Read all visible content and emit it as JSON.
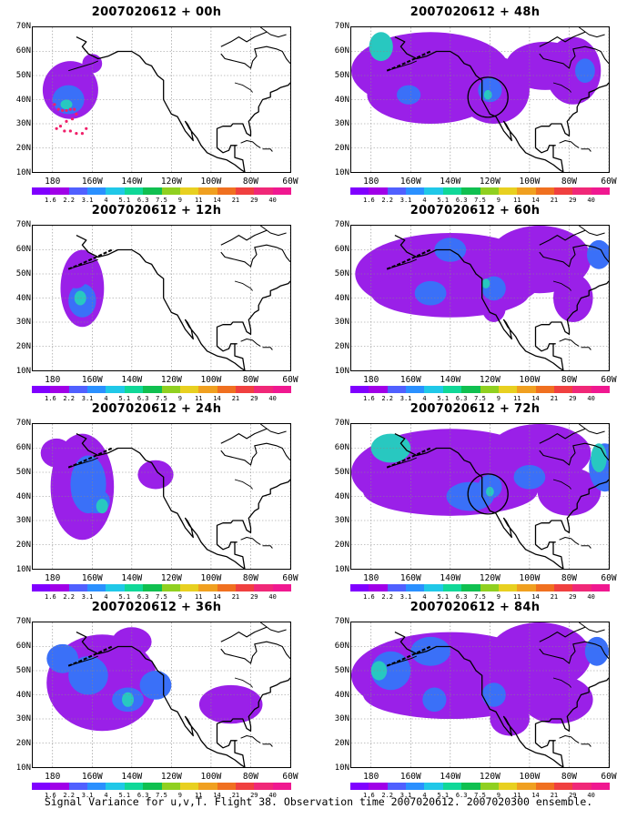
{
  "panels": [
    {
      "title": "2007020612 + 00h",
      "blobs": [
        [
          -171,
          44,
          14,
          12,
          0
        ],
        [
          -172,
          40,
          8,
          6,
          1
        ],
        [
          -173,
          38,
          3,
          2,
          2
        ],
        [
          -160,
          55,
          5,
          4,
          0
        ]
      ],
      "circle": false,
      "dots": true
    },
    {
      "title": "2007020612 + 48h",
      "blobs": [
        [
          -150,
          52,
          40,
          16,
          0
        ],
        [
          -150,
          42,
          32,
          12,
          0
        ],
        [
          -118,
          44,
          18,
          14,
          0
        ],
        [
          -92,
          54,
          20,
          10,
          0
        ],
        [
          -78,
          52,
          14,
          14,
          0
        ],
        [
          -120,
          44,
          6,
          5,
          1
        ],
        [
          -161,
          42,
          6,
          4,
          1
        ],
        [
          -72,
          52,
          5,
          5,
          1
        ],
        [
          -175,
          62,
          6,
          6,
          2
        ],
        [
          -121,
          42,
          2,
          2,
          2
        ]
      ],
      "circle": true,
      "dots": false
    },
    {
      "title": "2007020612 + 12h",
      "blobs": [
        [
          -165,
          44,
          11,
          16,
          0
        ],
        [
          -165,
          39,
          7,
          7,
          1
        ],
        [
          -166,
          40,
          3,
          3,
          2
        ],
        [
          -168,
          50,
          6,
          6,
          0
        ]
      ],
      "circle": false,
      "dots": false
    },
    {
      "title": "2007020612 + 60h",
      "blobs": [
        [
          -140,
          50,
          48,
          17,
          0
        ],
        [
          -140,
          42,
          40,
          10,
          0
        ],
        [
          -95,
          56,
          26,
          14,
          0
        ],
        [
          -118,
          36,
          6,
          6,
          0
        ],
        [
          -78,
          40,
          10,
          10,
          0
        ],
        [
          -150,
          42,
          8,
          5,
          1
        ],
        [
          -118,
          44,
          6,
          5,
          1
        ],
        [
          -140,
          60,
          8,
          5,
          1
        ],
        [
          -65,
          58,
          6,
          6,
          1
        ],
        [
          -122,
          46,
          2,
          2,
          2
        ]
      ],
      "circle": false,
      "dots": false
    },
    {
      "title": "2007020612 + 24h",
      "blobs": [
        [
          -165,
          44,
          16,
          22,
          0
        ],
        [
          -162,
          45,
          9,
          12,
          1
        ],
        [
          -158,
          38,
          7,
          5,
          1
        ],
        [
          -155,
          36,
          3,
          3,
          2
        ],
        [
          -178,
          58,
          8,
          6,
          0
        ],
        [
          -128,
          49,
          9,
          6,
          0
        ]
      ],
      "circle": false,
      "dots": false
    },
    {
      "title": "2007020612 + 72h",
      "blobs": [
        [
          -140,
          50,
          50,
          18,
          0
        ],
        [
          -140,
          42,
          44,
          10,
          0
        ],
        [
          -95,
          58,
          26,
          12,
          0
        ],
        [
          -80,
          42,
          16,
          10,
          0
        ],
        [
          -130,
          40,
          12,
          6,
          1
        ],
        [
          -62,
          52,
          8,
          10,
          1
        ],
        [
          -100,
          48,
          8,
          5,
          1
        ],
        [
          -120,
          44,
          6,
          5,
          1
        ],
        [
          -170,
          60,
          10,
          6,
          2
        ],
        [
          -65,
          56,
          4,
          6,
          2
        ],
        [
          -120,
          42,
          2,
          2,
          2
        ]
      ],
      "circle": true,
      "dots": false
    },
    {
      "title": "2007020612 + 36h",
      "blobs": [
        [
          -155,
          45,
          28,
          20,
          0
        ],
        [
          -162,
          48,
          10,
          8,
          1
        ],
        [
          -142,
          38,
          8,
          5,
          1
        ],
        [
          -128,
          44,
          8,
          6,
          1
        ],
        [
          -175,
          55,
          8,
          6,
          1
        ],
        [
          -142,
          38,
          3,
          3,
          2
        ],
        [
          -140,
          62,
          10,
          6,
          0
        ],
        [
          -90,
          36,
          16,
          8,
          0
        ]
      ],
      "circle": false,
      "dots": false
    },
    {
      "title": "2007020612 + 84h",
      "blobs": [
        [
          -140,
          48,
          50,
          18,
          0
        ],
        [
          -140,
          40,
          44,
          10,
          0
        ],
        [
          -95,
          56,
          26,
          14,
          0
        ],
        [
          -110,
          30,
          10,
          7,
          0
        ],
        [
          -86,
          38,
          18,
          10,
          0
        ],
        [
          -170,
          50,
          10,
          8,
          1
        ],
        [
          -148,
          38,
          6,
          5,
          1
        ],
        [
          -118,
          40,
          6,
          5,
          1
        ],
        [
          -150,
          58,
          10,
          6,
          1
        ],
        [
          -66,
          58,
          6,
          6,
          1
        ],
        [
          -176,
          50,
          4,
          4,
          2
        ]
      ],
      "circle": false,
      "dots": false
    }
  ],
  "ylabels": [
    "70N",
    "60N",
    "50N",
    "40N",
    "30N",
    "20N",
    "10N"
  ],
  "xlabels": [
    "180",
    "160W",
    "140W",
    "120W",
    "100W",
    "80W",
    "60W"
  ],
  "xlabel_lon": [
    -180,
    -160,
    -140,
    -120,
    -100,
    -80,
    -60
  ],
  "colorbar_colors": [
    "#8000ff",
    "#a000e8",
    "#5060ff",
    "#2a90ff",
    "#20c8e8",
    "#10d898",
    "#10c050",
    "#90d020",
    "#e8d020",
    "#f0a020",
    "#f07020",
    "#f04040",
    "#f02878",
    "#f01890"
  ],
  "colorbar_ticks": [
    "1.6",
    "2.2",
    "3.1",
    "4",
    "5.1",
    "6.3",
    "7.5",
    "9",
    "11",
    "14",
    "21",
    "29",
    "40"
  ],
  "blob_colors": [
    "#9a20e8",
    "#3a70f8",
    "#28c8c0"
  ],
  "caption": "Signal Variance for u,v,T. Flight 38. Observation time 2007020612. 2007020300 ensemble."
}
